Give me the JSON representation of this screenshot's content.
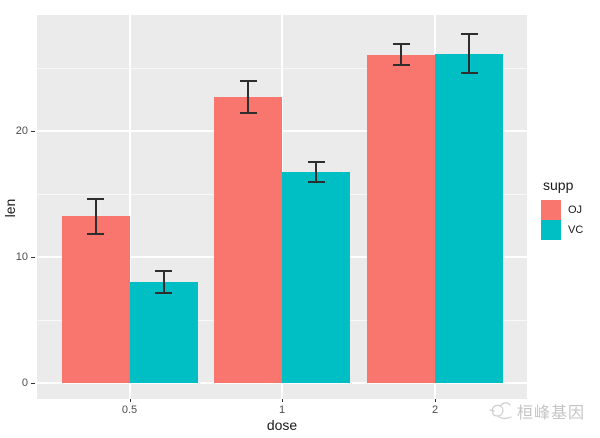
{
  "axes": {
    "x": {
      "title": "dose",
      "tick_labels": [
        "0.5",
        "1",
        "2"
      ]
    },
    "y": {
      "title": "len",
      "tick_labels": [
        "0",
        "10",
        "20"
      ],
      "tick_values": [
        0,
        10,
        20
      ],
      "minor_values": [
        5,
        15,
        25
      ]
    }
  },
  "legend": {
    "title": "supp",
    "items": [
      {
        "label": "OJ",
        "color": "#F8766D"
      },
      {
        "label": "VC",
        "color": "#00BFC4"
      }
    ]
  },
  "watermark": {
    "text": "桓峰基因",
    "logo": "bird-sketch-logo"
  },
  "colors": {
    "panel_bg": "#EBEBEB",
    "grid": "#FFFFFF",
    "oj_fill": "#F8766D",
    "vc_fill": "#00BFC4",
    "axis_text": "#4D4D4D",
    "title_text": "#1A1A1A",
    "errorbar": "#2E2E2E",
    "watermark": "#C8C8C8"
  },
  "chart_data": {
    "type": "bar",
    "title": "",
    "xlabel": "dose",
    "ylabel": "len",
    "categories": [
      "0.5",
      "1",
      "2"
    ],
    "series": [
      {
        "name": "OJ",
        "color": "#F8766D",
        "values": [
          13.23,
          22.7,
          26.06
        ],
        "se": [
          1.41,
          1.24,
          0.84
        ]
      },
      {
        "name": "VC",
        "color": "#00BFC4",
        "values": [
          7.98,
          16.77,
          26.14
        ],
        "se": [
          0.87,
          0.8,
          1.52
        ]
      }
    ],
    "error_bars": "mean ± standard error, black with caps",
    "legend_title": "supp",
    "legend_position": "right",
    "y_ticks": [
      0,
      10,
      20
    ],
    "y_minor_ticks": [
      5,
      15,
      25
    ],
    "ylim": [
      -1.3,
      29.2
    ],
    "bar_layout": "dodged pairs per dose category",
    "grid": "white horizontal major+minor lines and vertical major lines on gray panel",
    "panel_background": "#EBEBEB"
  }
}
